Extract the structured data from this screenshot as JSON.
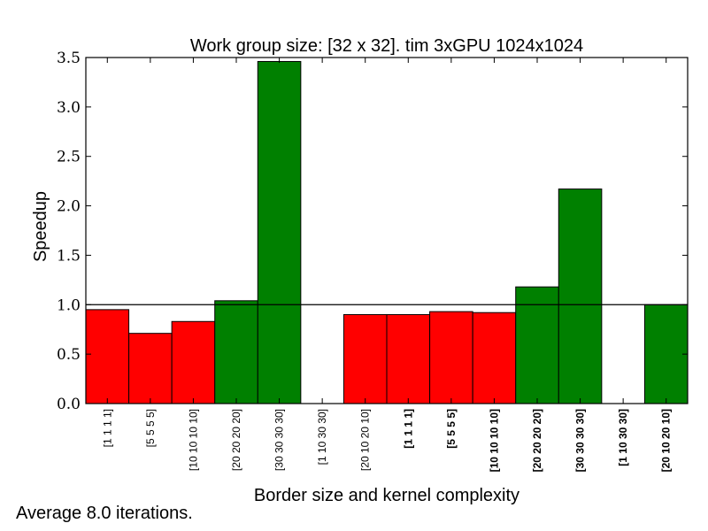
{
  "chart_data": {
    "type": "bar",
    "title": "Work group size: [32 x 32]. tim 3xGPU 1024x1024",
    "xlabel": "Border size and kernel complexity",
    "ylabel": "Speedup",
    "ylim": [
      0,
      3.5
    ],
    "yticks": [
      "0.0",
      "0.5",
      "1.0",
      "1.5",
      "2.0",
      "2.5",
      "3.0",
      "3.5"
    ],
    "reference_line": 1.0,
    "categories": [
      {
        "label": "[1 1 1 1]",
        "bold": false
      },
      {
        "label": "[5 5 5 5]",
        "bold": false
      },
      {
        "label": "[10 10 10 10]",
        "bold": false
      },
      {
        "label": "[20 20 20 20]",
        "bold": false
      },
      {
        "label": "[30 30 30 30]",
        "bold": false
      },
      {
        "label": "[1 10 30 30]",
        "bold": false
      },
      {
        "label": "[20 10 20 10]",
        "bold": false
      },
      {
        "label": "[1 1 1 1]",
        "bold": true
      },
      {
        "label": "[5 5 5 5]",
        "bold": true
      },
      {
        "label": "[10 10 10 10]",
        "bold": true
      },
      {
        "label": "[20 20 20 20]",
        "bold": true
      },
      {
        "label": "[30 30 30 30]",
        "bold": true
      },
      {
        "label": "[1 10 30 30]",
        "bold": true
      },
      {
        "label": "[20 10 20 10]",
        "bold": true
      }
    ],
    "values": [
      0.95,
      0.71,
      0.83,
      1.04,
      3.46,
      0.0,
      0.9,
      0.9,
      0.93,
      0.92,
      1.18,
      2.17,
      0.0,
      1.0
    ],
    "colors": {
      "above": "#008000",
      "below": "#ff0000",
      "edge": "#000000",
      "line": "#000000"
    },
    "grid": false
  },
  "footnote": "Average 8.0 iterations."
}
